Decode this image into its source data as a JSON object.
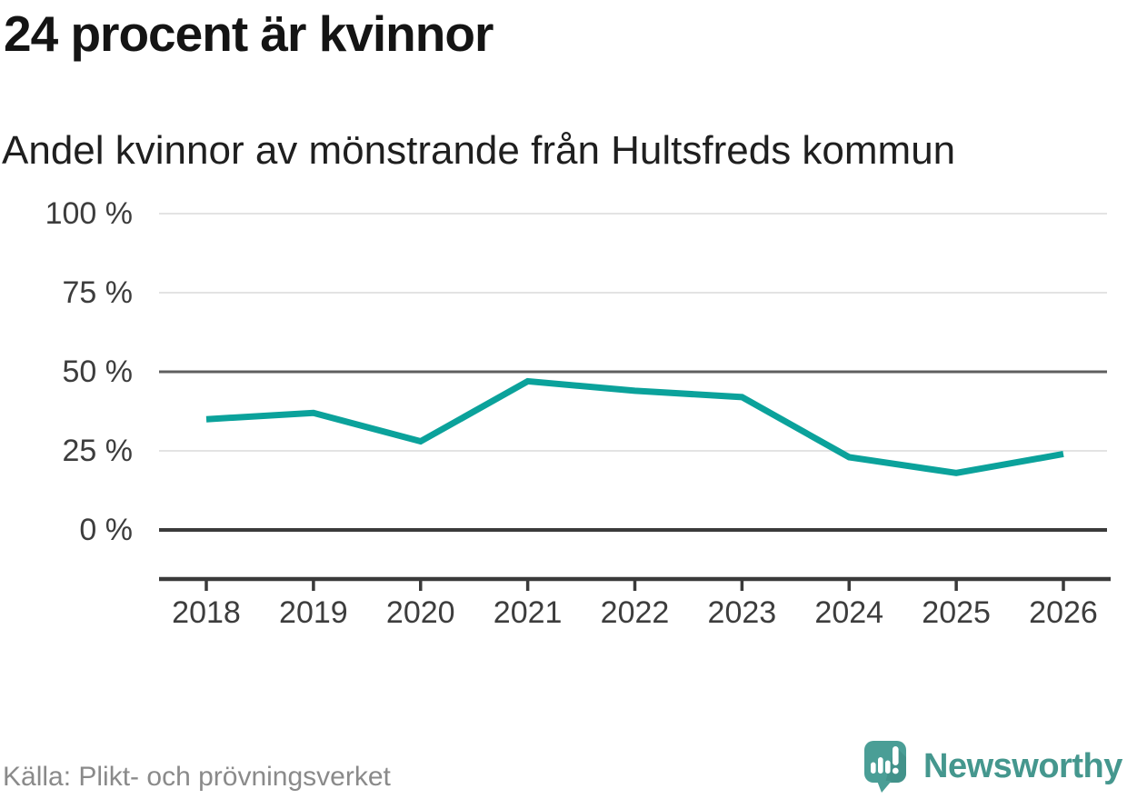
{
  "header": {
    "title": "24 procent är kvinnor",
    "subtitle": "Andel kvinnor av mönstrande från Hultsfreds kommun"
  },
  "chart_data": {
    "type": "line",
    "title": "24 procent är kvinnor",
    "subtitle": "Andel kvinnor av mönstrande från Hultsfreds kommun",
    "categories": [
      "2018",
      "2019",
      "2020",
      "2021",
      "2022",
      "2023",
      "2024",
      "2025",
      "2026"
    ],
    "series": [
      {
        "name": "Andel kvinnor av mönstrande",
        "values": [
          35,
          37,
          28,
          47,
          44,
          42,
          23,
          18,
          24
        ]
      }
    ],
    "unit": "%",
    "xlabel": "",
    "ylabel": "",
    "ylim": [
      0,
      100
    ],
    "yticks": [
      {
        "value": 100,
        "label": "100 %"
      },
      {
        "value": 75,
        "label": "75 %"
      },
      {
        "value": 50,
        "label": "50 %"
      },
      {
        "value": 25,
        "label": "25 %"
      },
      {
        "value": 0,
        "label": "0 %"
      }
    ],
    "grid": "horizontal",
    "legend": "none",
    "line_color": "#0ba29b",
    "emphasized_gridlines": [
      50,
      0
    ]
  },
  "footer": {
    "source": "Källa: Plikt- och prövningsverket",
    "brand": "Newsworthy"
  },
  "colors": {
    "line": "#0ba29b",
    "brand_teal": "#45978e",
    "icon_teal": "#4a9e96",
    "icon_shadow": "#3e8a82",
    "title_text": "#141414",
    "axis_text": "#3d3d3d",
    "source_text": "#8a8a8a",
    "grid_light": "#e3e3e3",
    "grid_mid": "#5f5f5f",
    "grid_dark": "#3a3a3a"
  }
}
